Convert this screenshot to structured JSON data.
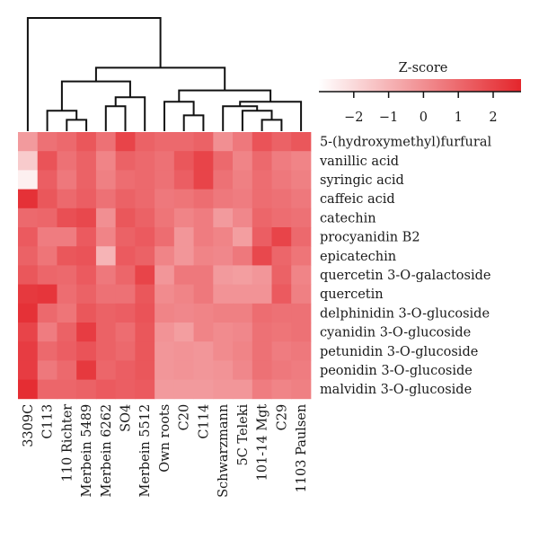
{
  "chart_data": {
    "type": "heatmap",
    "title": "",
    "legend": {
      "title": "Z-score",
      "ticks": [
        "−2",
        "−1",
        "0",
        "1",
        "2"
      ],
      "tick_values": [
        -2,
        -1,
        0,
        1,
        2
      ],
      "range": [
        -3,
        2.8
      ],
      "color_low": "#ffffff",
      "color_high": "#e4262c"
    },
    "rows": [
      "5-(hydroxymethyl)furfural",
      "vanillic acid",
      "syringic acid",
      "caffeic acid",
      "catechin",
      "procyanidin B2",
      "epicatechin",
      "quercetin 3-O-galactoside",
      "quercetin",
      "delphinidin 3-O-glucoside",
      "cyanidin 3-O-glucoside",
      "petunidin 3-O-glucoside",
      "peonidin 3-O-glucoside",
      "malvidin 3-O-glucoside"
    ],
    "columns": [
      "3309C",
      "C113",
      "110 Richter",
      "Merbein 5489",
      "Merbein 6262",
      "SO4",
      "Merbein 5512",
      "Own roots",
      "C20",
      "C114",
      "Schwarzmann",
      "5C Teleki",
      "101-14 Mgt",
      "C29",
      "1103 Paulsen"
    ],
    "values": [
      [
        -0.3,
        0.8,
        1.0,
        1.5,
        0.8,
        2.0,
        1.2,
        1.0,
        1.0,
        1.2,
        0.0,
        0.6,
        1.6,
        1.2,
        1.5
      ],
      [
        -1.6,
        1.6,
        0.8,
        1.2,
        0.3,
        1.2,
        1.0,
        0.8,
        1.5,
        2.0,
        1.0,
        0.3,
        1.0,
        0.5,
        0.3
      ],
      [
        -2.6,
        1.3,
        0.6,
        1.2,
        0.4,
        0.9,
        1.0,
        0.8,
        1.3,
        2.0,
        0.8,
        0.4,
        0.9,
        0.6,
        0.4
      ],
      [
        2.5,
        1.5,
        1.0,
        1.3,
        0.8,
        1.2,
        1.0,
        0.6,
        0.7,
        0.9,
        0.6,
        0.5,
        0.9,
        0.8,
        0.6
      ],
      [
        1.0,
        1.1,
        1.7,
        1.9,
        0.0,
        1.5,
        1.2,
        0.7,
        0.3,
        0.5,
        -0.3,
        0.2,
        1.1,
        0.9,
        0.8
      ],
      [
        1.4,
        0.5,
        0.5,
        1.4,
        0.3,
        1.2,
        1.4,
        0.9,
        -0.2,
        0.5,
        0.3,
        -0.4,
        1.3,
        2.0,
        1.0
      ],
      [
        1.2,
        0.7,
        1.5,
        1.6,
        -1.0,
        1.4,
        1.2,
        0.3,
        -0.2,
        0.3,
        0.2,
        0.6,
        1.9,
        1.1,
        0.7
      ],
      [
        1.5,
        1.1,
        1.0,
        1.4,
        0.6,
        1.1,
        2.0,
        -0.2,
        0.6,
        0.6,
        -0.3,
        -0.4,
        -0.2,
        1.2,
        0.3
      ],
      [
        2.3,
        2.4,
        0.9,
        1.2,
        0.8,
        0.8,
        1.5,
        0.1,
        0.3,
        0.6,
        -0.1,
        -0.1,
        -0.1,
        1.4,
        0.4
      ],
      [
        2.5,
        1.0,
        0.7,
        1.5,
        1.2,
        1.3,
        1.6,
        0.3,
        0.2,
        0.3,
        0.4,
        0.4,
        0.9,
        0.8,
        0.8
      ],
      [
        2.0,
        0.5,
        1.2,
        2.2,
        1.2,
        0.9,
        1.5,
        -0.1,
        -0.4,
        0.3,
        0.1,
        0.2,
        0.8,
        0.7,
        0.8
      ],
      [
        2.2,
        1.0,
        1.3,
        1.6,
        1.2,
        1.0,
        1.5,
        -0.2,
        -0.1,
        -0.2,
        0.1,
        0.3,
        0.8,
        0.5,
        0.6
      ],
      [
        2.2,
        0.6,
        1.0,
        2.3,
        1.1,
        1.3,
        1.5,
        -0.2,
        -0.1,
        -0.2,
        -0.1,
        0.2,
        0.8,
        0.6,
        0.5
      ],
      [
        2.6,
        1.1,
        1.1,
        1.2,
        1.4,
        1.3,
        1.4,
        -0.3,
        -0.3,
        -0.3,
        -0.2,
        -0.2,
        0.5,
        0.3,
        0.4
      ]
    ],
    "dendrogram": {
      "leaf_order": [
        0,
        1,
        2,
        3,
        4,
        5,
        6,
        7,
        8,
        9,
        10,
        11,
        12,
        13,
        14
      ],
      "merges": [
        [
          2,
          3,
          0.1
        ],
        [
          1,
          15,
          0.18
        ],
        [
          4,
          5,
          0.22
        ],
        [
          6,
          17,
          0.3
        ],
        [
          16,
          18,
          0.44
        ],
        [
          12,
          13,
          0.1
        ],
        [
          11,
          20,
          0.18
        ],
        [
          10,
          21,
          0.22
        ],
        [
          14,
          22,
          0.26
        ],
        [
          8,
          9,
          0.14
        ],
        [
          7,
          24,
          0.26
        ],
        [
          25,
          23,
          0.36
        ],
        [
          19,
          26,
          0.56
        ],
        [
          0,
          27,
          1.0
        ]
      ]
    }
  }
}
